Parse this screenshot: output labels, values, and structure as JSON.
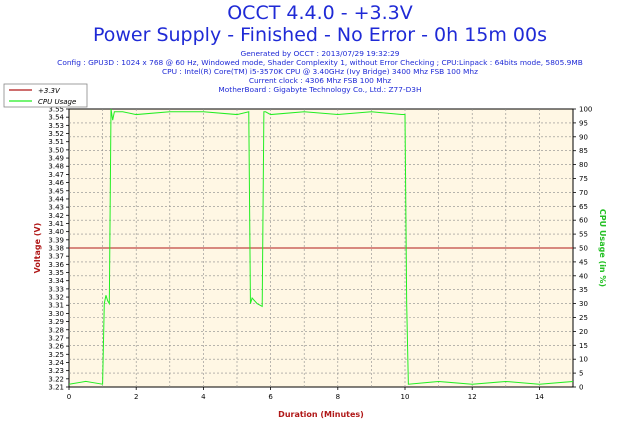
{
  "header": {
    "title": "OCCT 4.4.0 - +3.3V",
    "subtitle": "Power Supply - Finished - No Error - 0h 15m 00s",
    "generated": "Generated by OCCT : 2013/07/29 19:32:29",
    "config": "Config : GPU3D : 1024 x 768 @ 60 Hz, Windowed mode, Shader Complexity 1, without Error Checking ; CPU:Linpack : 64bits mode, 5805.9MB",
    "cpu": "CPU : Intel(R) Core(TM) i5-3570K CPU @ 3.40GHz (Ivy Bridge) 3400 Mhz FSB 100 Mhz",
    "clock": "Current clock : 4306 Mhz FSB 100 Mhz",
    "motherboard": "MotherBoard : Gigabyte Technology Co., Ltd.: Z77-D3H"
  },
  "colors": {
    "voltage": "#b01818",
    "cpu": "#22ee22",
    "grid": "#8c8c8c",
    "plot_bg": "#fff7e4",
    "text": "#1f2ad6"
  },
  "chart_data": {
    "type": "line",
    "xlabel": "Duration (Minutes)",
    "ylabel": "Voltage (V)",
    "y2label": "CPU Usage (in %)",
    "xlim": [
      0,
      15
    ],
    "ylim": [
      3.21,
      3.55
    ],
    "y2lim": [
      0,
      100
    ],
    "x_ticks": [
      0,
      2,
      4,
      6,
      8,
      10,
      12,
      14
    ],
    "y_ticks": [
      "3.21",
      "3.22",
      "3.23",
      "3.24",
      "3.25",
      "3.26",
      "3.27",
      "3.28",
      "3.29",
      "3.30",
      "3.31",
      "3.32",
      "3.33",
      "3.34",
      "3.35",
      "3.36",
      "3.37",
      "3.38",
      "3.39",
      "3.40",
      "3.41",
      "3.42",
      "3.43",
      "3.44",
      "3.45",
      "3.46",
      "3.47",
      "3.48",
      "3.49",
      "3.50",
      "3.51",
      "3.52",
      "3.53",
      "3.54",
      "3.55"
    ],
    "y2_ticks": [
      0,
      5,
      10,
      15,
      20,
      25,
      30,
      35,
      40,
      45,
      50,
      55,
      60,
      65,
      70,
      75,
      80,
      85,
      90,
      95,
      100
    ],
    "legend": [
      "+3.3V",
      "CPU Usage"
    ],
    "legend_position": "top-left",
    "grid": true,
    "series": [
      {
        "name": "+3.3V",
        "axis": "left",
        "x": [
          0,
          15
        ],
        "y": [
          3.38,
          3.38
        ]
      },
      {
        "name": "CPU Usage",
        "axis": "right",
        "x": [
          0,
          0.5,
          1.0,
          1.05,
          1.1,
          1.15,
          1.2,
          1.25,
          1.3,
          1.35,
          1.6,
          2.0,
          3.0,
          4.0,
          5.0,
          5.35,
          5.4,
          5.45,
          5.6,
          5.75,
          5.8,
          5.85,
          6.0,
          7.0,
          8.0,
          9.0,
          9.9,
          10.0,
          10.05,
          10.1,
          11,
          12,
          13,
          14,
          15
        ],
        "y": [
          1,
          2,
          1,
          30,
          33,
          31,
          30,
          100,
          96,
          99,
          99,
          98,
          99,
          99,
          98,
          99,
          30,
          32,
          30,
          29,
          99,
          99,
          98,
          99,
          98,
          99,
          98,
          98,
          30,
          1,
          2,
          1,
          2,
          1,
          2
        ]
      }
    ]
  }
}
